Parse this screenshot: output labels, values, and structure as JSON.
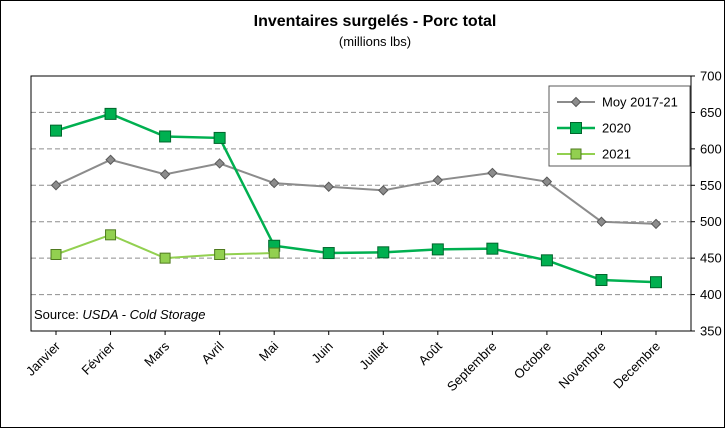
{
  "header": {
    "title": "Inventaires surgelés - Porc total",
    "subtitle": "(millions lbs)"
  },
  "source": {
    "prefix": "Source: ",
    "name": "USDA - Cold Storage"
  },
  "chart_data": {
    "type": "line",
    "title": "Inventaires surgelés - Porc total",
    "subtitle": "(millions lbs)",
    "categories": [
      "Janvier",
      "Février",
      "Mars",
      "Avril",
      "Mai",
      "Juin",
      "Juillet",
      "Août",
      "Septembre",
      "Octobre",
      "Novembre",
      "Decembre"
    ],
    "series": [
      {
        "name": "Moy 2017-21",
        "color": "#8C8C8C",
        "edge": "#595959",
        "marker": "diamond",
        "marker_size": 4.5,
        "line_width": 2,
        "values": [
          550,
          585,
          565,
          580,
          553,
          548,
          543,
          557,
          567,
          555,
          500,
          497
        ]
      },
      {
        "name": "2020",
        "color": "#00B050",
        "edge": "#00662C",
        "marker": "square",
        "marker_size": 5.5,
        "line_width": 2.5,
        "values": [
          625,
          648,
          617,
          615,
          467,
          457,
          458,
          462,
          463,
          447,
          420,
          417
        ]
      },
      {
        "name": "2021",
        "color": "#92D050",
        "edge": "#4F7A1F",
        "marker": "square",
        "marker_size": 5,
        "line_width": 2,
        "values": [
          455,
          482,
          450,
          455,
          457,
          null,
          null,
          null,
          null,
          null,
          null,
          null
        ]
      }
    ],
    "ylim": [
      350,
      700
    ],
    "ytick_step": 50,
    "yaxis_side": "right",
    "grid": "horizontal-dashed",
    "legend_position": "top-right",
    "source": "Source: USDA - Cold Storage"
  }
}
